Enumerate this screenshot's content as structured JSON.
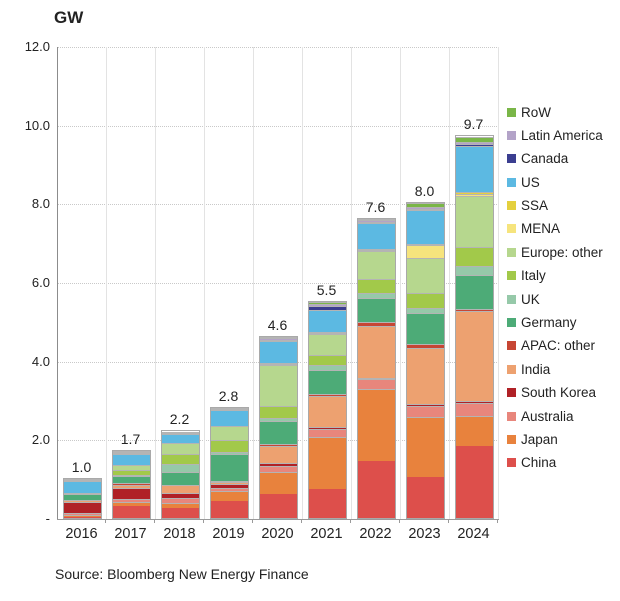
{
  "chart_data": {
    "type": "bar",
    "stacked": true,
    "title": "GW",
    "source": "Source: Bloomberg New Energy Finance",
    "ylim": [
      0,
      12
    ],
    "grid": "horizontal-dotted",
    "legend_position": "right",
    "categories": [
      "2016",
      "2017",
      "2018",
      "2019",
      "2020",
      "2021",
      "2022",
      "2023",
      "2024"
    ],
    "totals_labels": [
      "1.0",
      "1.7",
      "2.2",
      "2.8",
      "4.6",
      "5.5",
      "7.6",
      "8.0",
      "9.7"
    ],
    "y_ticks": [
      {
        "label": "12.0",
        "value": 12
      },
      {
        "label": "10.0",
        "value": 10
      },
      {
        "label": "8.0",
        "value": 8
      },
      {
        "label": "6.0",
        "value": 6
      },
      {
        "label": "4.0",
        "value": 4
      },
      {
        "label": "2.0",
        "value": 2
      },
      {
        "label": "-",
        "value": 0
      }
    ],
    "series": [
      {
        "name": "China",
        "color": "#dd4f4b",
        "values": [
          0.02,
          0.3,
          0.25,
          0.44,
          0.62,
          0.75,
          1.45,
          1.05,
          1.82
        ]
      },
      {
        "name": "Japan",
        "color": "#e8823d",
        "values": [
          0.06,
          0.12,
          0.13,
          0.25,
          0.55,
          1.3,
          1.85,
          1.52,
          0.78
        ]
      },
      {
        "name": "Australia",
        "color": "#e8867c",
        "values": [
          0.04,
          0.08,
          0.13,
          0.07,
          0.15,
          0.21,
          0.25,
          0.28,
          0.33
        ]
      },
      {
        "name": "South Korea",
        "color": "#b02126",
        "values": [
          0.3,
          0.28,
          0.13,
          0.1,
          0.08,
          0.05,
          0.02,
          0.06,
          0.05
        ]
      },
      {
        "name": "India",
        "color": "#eda170",
        "values": [
          0.04,
          0.08,
          0.2,
          0.05,
          0.45,
          0.8,
          1.33,
          1.43,
          2.28
        ]
      },
      {
        "name": "APAC: other",
        "color": "#c74634",
        "values": [
          0.0,
          0.03,
          0.0,
          0.03,
          0.03,
          0.05,
          0.08,
          0.08,
          0.06
        ]
      },
      {
        "name": "Germany",
        "color": "#4dab77",
        "values": [
          0.15,
          0.18,
          0.33,
          0.7,
          0.6,
          0.6,
          0.63,
          0.8,
          0.85
        ]
      },
      {
        "name": "UK",
        "color": "#96c9a9",
        "values": [
          0.04,
          0.05,
          0.22,
          0.04,
          0.08,
          0.13,
          0.13,
          0.13,
          0.25
        ]
      },
      {
        "name": "Italy",
        "color": "#a2c94a",
        "values": [
          0.0,
          0.12,
          0.25,
          0.31,
          0.3,
          0.25,
          0.35,
          0.38,
          0.46
        ]
      },
      {
        "name": "Europe: other",
        "color": "#b6d78e",
        "values": [
          0.0,
          0.12,
          0.28,
          0.36,
          1.05,
          0.55,
          0.72,
          0.88,
          1.3
        ]
      },
      {
        "name": "MENA",
        "color": "#f6e47d",
        "values": [
          0.0,
          0.0,
          0.0,
          0.0,
          0.02,
          0.03,
          0.02,
          0.35,
          0.05
        ]
      },
      {
        "name": "SSA",
        "color": "#e4d03e",
        "values": [
          0.0,
          0.0,
          0.0,
          0.0,
          0.02,
          0.02,
          0.02,
          0.02,
          0.05
        ]
      },
      {
        "name": "US",
        "color": "#5cb9e2",
        "values": [
          0.3,
          0.28,
          0.25,
          0.4,
          0.55,
          0.55,
          0.66,
          0.85,
          1.19
        ]
      },
      {
        "name": "Canada",
        "color": "#3b3e90",
        "values": [
          0.0,
          0.01,
          0.0,
          0.0,
          0.02,
          0.1,
          0.02,
          0.02,
          0.04
        ]
      },
      {
        "name": "Latin America",
        "color": "#b3a3c8",
        "values": [
          0.03,
          0.03,
          0.02,
          0.03,
          0.05,
          0.05,
          0.04,
          0.05,
          0.05
        ]
      },
      {
        "name": "RoW",
        "color": "#7ab648",
        "values": [
          0.02,
          0.02,
          0.01,
          0.02,
          0.03,
          0.06,
          0.03,
          0.1,
          0.14
        ]
      }
    ]
  }
}
